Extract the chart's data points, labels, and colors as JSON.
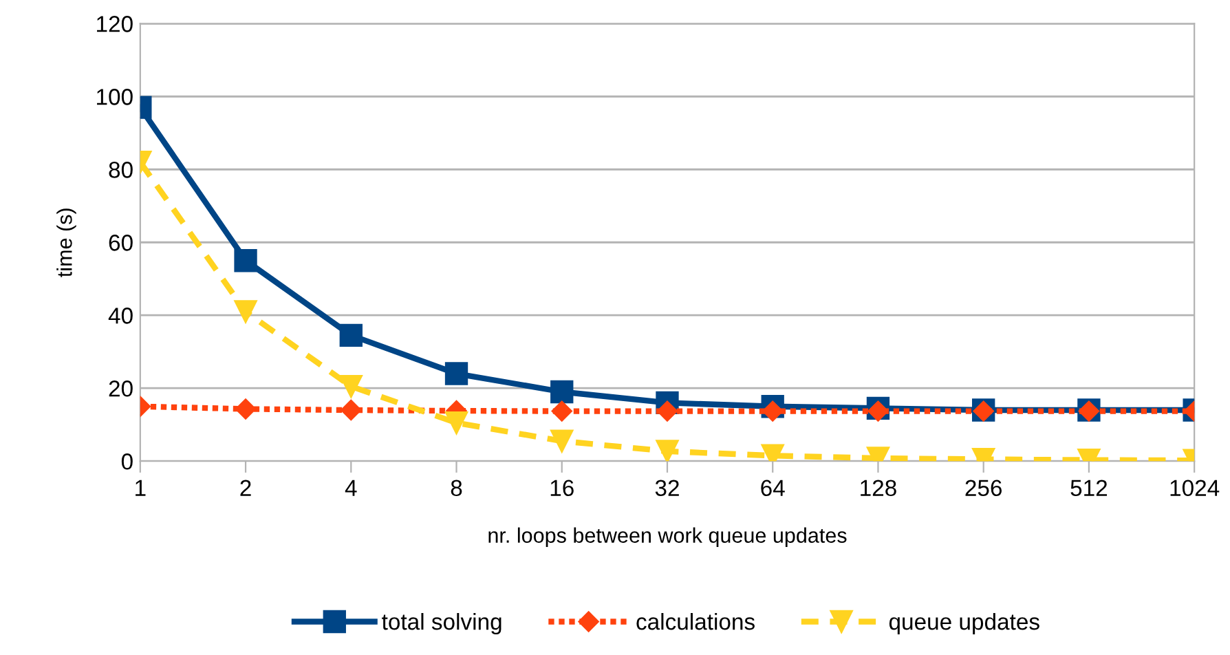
{
  "chart_data": {
    "type": "line",
    "xlabel": "nr. loops between work queue updates",
    "ylabel": "time (s)",
    "categories": [
      "1",
      "2",
      "4",
      "8",
      "16",
      "32",
      "64",
      "128",
      "256",
      "512",
      "1024"
    ],
    "ylim": [
      0,
      120
    ],
    "yticks": [
      0,
      20,
      40,
      60,
      80,
      100,
      120
    ],
    "grid": "y",
    "legend": "bottom",
    "series": [
      {
        "name": "total solving",
        "color": "#004586",
        "marker": "square",
        "line_style": "solid",
        "values": [
          97,
          55,
          34.5,
          24,
          19,
          16,
          15,
          14.5,
          14,
          14,
          14
        ]
      },
      {
        "name": "calculations",
        "color": "#ff420e",
        "marker": "diamond",
        "line_style": "dotted",
        "values": [
          15,
          14.3,
          14,
          13.8,
          13.7,
          13.7,
          13.7,
          13.7,
          13.7,
          13.7,
          13.7
        ]
      },
      {
        "name": "queue updates",
        "color": "#ffd320",
        "marker": "triangle",
        "line_style": "dashed",
        "values": [
          82,
          41,
          20.5,
          10.5,
          5.5,
          2.7,
          1.5,
          0.8,
          0.5,
          0.3,
          0.2
        ]
      }
    ]
  }
}
